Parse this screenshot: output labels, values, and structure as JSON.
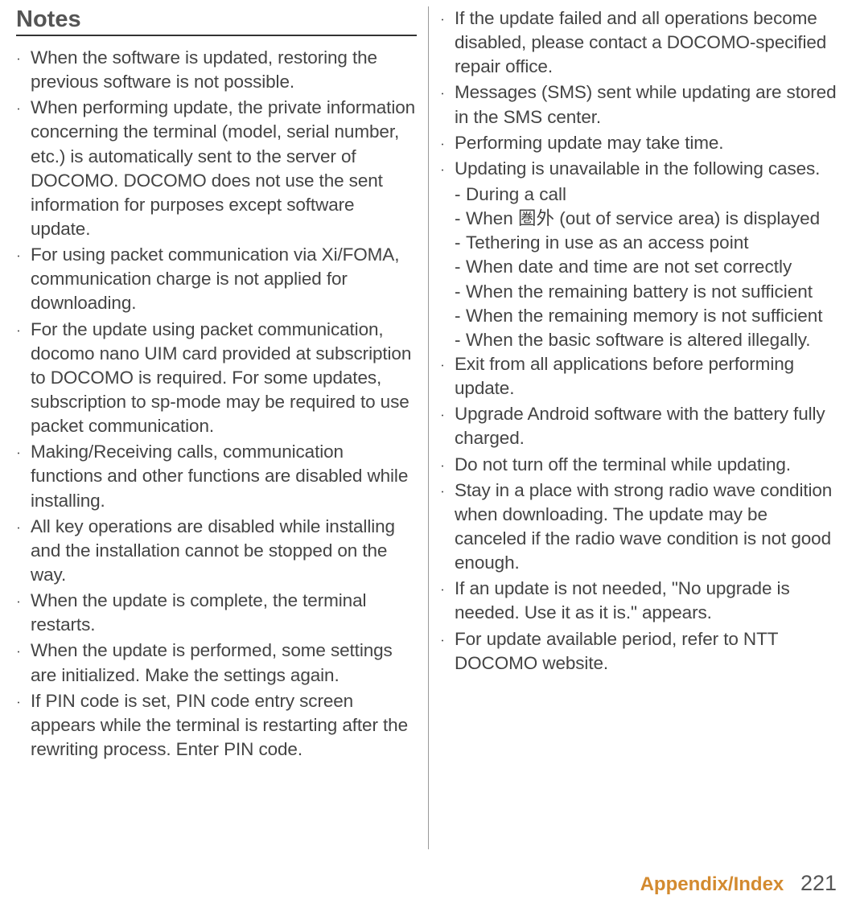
{
  "title": "Notes",
  "left": [
    {
      "text": "When the software is updated, restoring the previous software is not possible."
    },
    {
      "text": "When performing update, the private information concerning the terminal (model, serial number, etc.) is automatically sent to the server of DOCOMO. DOCOMO does not use the sent information for purposes except software update."
    },
    {
      "text": "For using packet communication via Xi/FOMA, communication charge is not applied for downloading."
    },
    {
      "text": "For the update using packet communication, docomo nano UIM card provided at subscription to DOCOMO is required. For some updates, subscription to sp-mode may be required to use packet communication."
    },
    {
      "text": "Making/Receiving calls, communication functions and other functions are disabled while installing."
    },
    {
      "text": "All key operations are disabled while installing and the installation cannot be stopped on the way."
    },
    {
      "text": "When the update is complete, the terminal restarts."
    },
    {
      "text": "When the update is performed, some settings are initialized. Make the settings again."
    },
    {
      "text": "If PIN code is set, PIN code entry screen appears while the terminal is restarting after the rewriting process. Enter PIN code."
    }
  ],
  "right": [
    {
      "text": "If the update failed and all operations become disabled, please contact a DOCOMO-specified repair office."
    },
    {
      "text": "Messages (SMS) sent while updating are stored in the SMS center."
    },
    {
      "text": "Performing update may take time."
    },
    {
      "text": "Updating is unavailable in the following cases.",
      "sub": [
        "During a call",
        "When 圏外 (out of service area) is displayed",
        "Tethering in use as an access point",
        "When date and time are not set correctly",
        "When the remaining battery is not sufficient",
        "When the remaining memory is not sufficient",
        "When the basic software is altered illegally."
      ]
    },
    {
      "text": "Exit from all applications before performing update."
    },
    {
      "text": "Upgrade Android software with the battery fully charged."
    },
    {
      "text": "Do not turn off the terminal while updating."
    },
    {
      "text": "Stay in a place with strong radio wave condition when downloading. The update may be canceled if the radio wave condition is not good enough."
    },
    {
      "text": "If an update is not needed, \"No upgrade is needed. Use it as it is.\" appears."
    },
    {
      "text": "For update available period, refer to NTT DOCOMO website."
    }
  ],
  "footer": {
    "label": "Appendix/Index",
    "page": "221"
  },
  "colors": {
    "text": "#444444",
    "rule": "#333333",
    "divider": "#999999",
    "footer_label": "#d38a2f",
    "background": "#ffffff"
  }
}
